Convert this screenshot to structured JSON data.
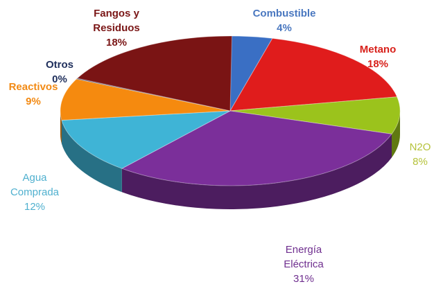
{
  "chart_data": {
    "type": "pie",
    "title": "",
    "slices": [
      {
        "lines": [
          "Combustible"
        ],
        "value_label": "4%",
        "value": 4,
        "color": "#3a6fc4",
        "label_color": "#4a78c0",
        "bold": true
      },
      {
        "lines": [
          "Metano"
        ],
        "value_label": "18%",
        "value": 18,
        "color": "#e01c1c",
        "label_color": "#d8211b",
        "bold": true
      },
      {
        "lines": [
          "N2O"
        ],
        "value_label": "8%",
        "value": 8,
        "color": "#9bc31c",
        "label_color": "#b5c23a",
        "bold": false
      },
      {
        "lines": [
          "Energía",
          "Eléctrica"
        ],
        "value_label": "31%",
        "value": 31,
        "color": "#7b2f9a",
        "label_color": "#6f2f8f",
        "bold": false
      },
      {
        "lines": [
          "Agua",
          "Comprada"
        ],
        "value_label": "12%",
        "value": 12,
        "color": "#3fb4d6",
        "label_color": "#4fb0cf",
        "bold": false
      },
      {
        "lines": [
          "Reactivos"
        ],
        "value_label": "9%",
        "value": 9,
        "color": "#f58a0f",
        "label_color": "#f28a14",
        "bold": true
      },
      {
        "lines": [
          "Otros"
        ],
        "value_label": "0%",
        "value": 0,
        "color": "#1f2f5c",
        "label_color": "#1f2f5c",
        "bold": true
      },
      {
        "lines": [
          "Fangos y",
          "Residuos"
        ],
        "value_label": "18%",
        "value": 18,
        "color": "#7a1414",
        "label_color": "#7a1616",
        "bold": true
      }
    ]
  }
}
